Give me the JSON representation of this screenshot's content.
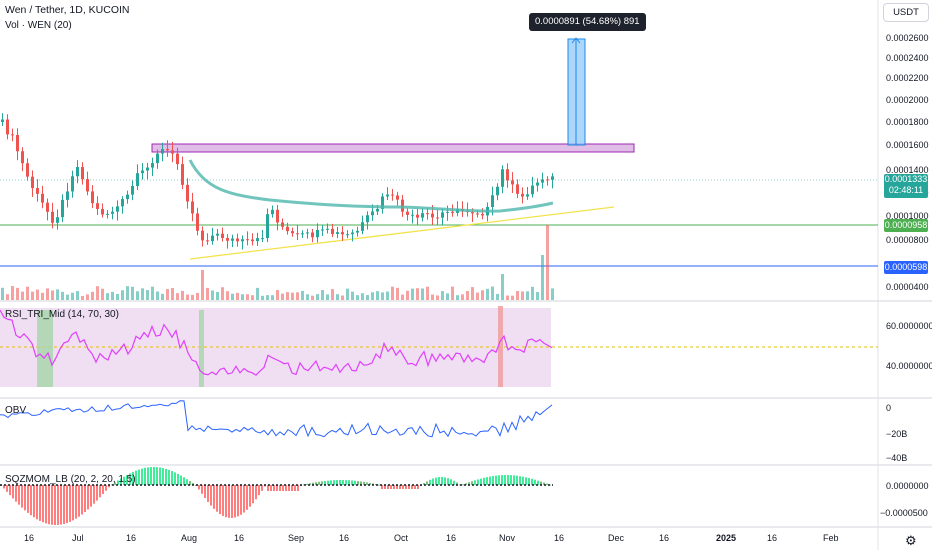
{
  "header": {
    "symbol_line": "Wen / Tether, 1D, KUCOIN",
    "vol_line": "Vol · WEN (20)",
    "quote_currency_button": "USDT"
  },
  "measure_tooltip": "0.0000891 (54.68%) 891",
  "price_axis": {
    "ticks": [
      "0.0002600",
      "0.0002400",
      "0.0002200",
      "0.0002000",
      "0.0001800",
      "0.0001600",
      "0.0001400",
      "0.0001200",
      "0.0001000",
      "0.0000800",
      "0.0000400"
    ],
    "last_price": "0.0001333",
    "countdown": "02:48:11",
    "line1_price": "0.0000958",
    "line2_price": "0.0000598",
    "colors": {
      "last": "#26a69a",
      "line1": "#4caf50",
      "line2": "#2962ff"
    }
  },
  "panes": {
    "rsi": {
      "label": "RSI_TRI_Mid (14, 70, 30)",
      "ticks": [
        "60.0000000",
        "40.0000000"
      ]
    },
    "obv": {
      "label": "OBV",
      "ticks": [
        "0",
        "−20B",
        "−40B"
      ]
    },
    "sqz": {
      "label": "SQZMOM_LB (20, 2, 20, 1.5)",
      "ticks": [
        "0.0000000",
        "−0.0000500"
      ]
    }
  },
  "time_axis": {
    "labels": [
      "16",
      "Jul",
      "16",
      "Aug",
      "16",
      "Sep",
      "16",
      "Oct",
      "16",
      "Nov",
      "16",
      "Dec",
      "16",
      "2025",
      "16",
      "Feb"
    ]
  },
  "settings_icon": "gear-icon",
  "chart_data": {
    "type": "candlestick",
    "title": "Wen / Tether, 1D, KUCOIN",
    "x_range": [
      "2024-06-10",
      "2025-02-20"
    ],
    "y_range": [
      3e-05,
      0.00027
    ],
    "close_approx": [
      {
        "date": "2024-06-12",
        "close": 0.000146
      },
      {
        "date": "2024-06-20",
        "close": 0.000118
      },
      {
        "date": "2024-06-28",
        "close": 9e-05
      },
      {
        "date": "2024-07-06",
        "close": 0.000124
      },
      {
        "date": "2024-07-14",
        "close": 0.000102
      },
      {
        "date": "2024-07-22",
        "close": 0.000132
      },
      {
        "date": "2024-07-28",
        "close": 0.000154
      },
      {
        "date": "2024-08-05",
        "close": 7.6e-05
      },
      {
        "date": "2024-08-13",
        "close": 8.2e-05
      },
      {
        "date": "2024-08-21",
        "close": 8.8e-05
      },
      {
        "date": "2024-08-27",
        "close": 0.00012
      },
      {
        "date": "2024-09-06",
        "close": 8.2e-05
      },
      {
        "date": "2024-09-14",
        "close": 8.4e-05
      },
      {
        "date": "2024-09-22",
        "close": 9e-05
      },
      {
        "date": "2024-09-30",
        "close": 0.00012
      },
      {
        "date": "2024-10-08",
        "close": 0.0001
      },
      {
        "date": "2024-10-16",
        "close": 0.000104
      },
      {
        "date": "2024-10-24",
        "close": 0.000102
      },
      {
        "date": "2024-10-30",
        "close": 0.00014
      },
      {
        "date": "2024-11-07",
        "close": 0.000104
      },
      {
        "date": "2024-11-13",
        "close": 0.0001333
      }
    ],
    "resistance_zone": [
      0.000152,
      0.000157
    ],
    "horizontal_lines": [
      9.58e-05,
      5.98e-05
    ],
    "measure": {
      "change": 8.91e-05,
      "percent": 54.68,
      "ticks": 891
    }
  }
}
